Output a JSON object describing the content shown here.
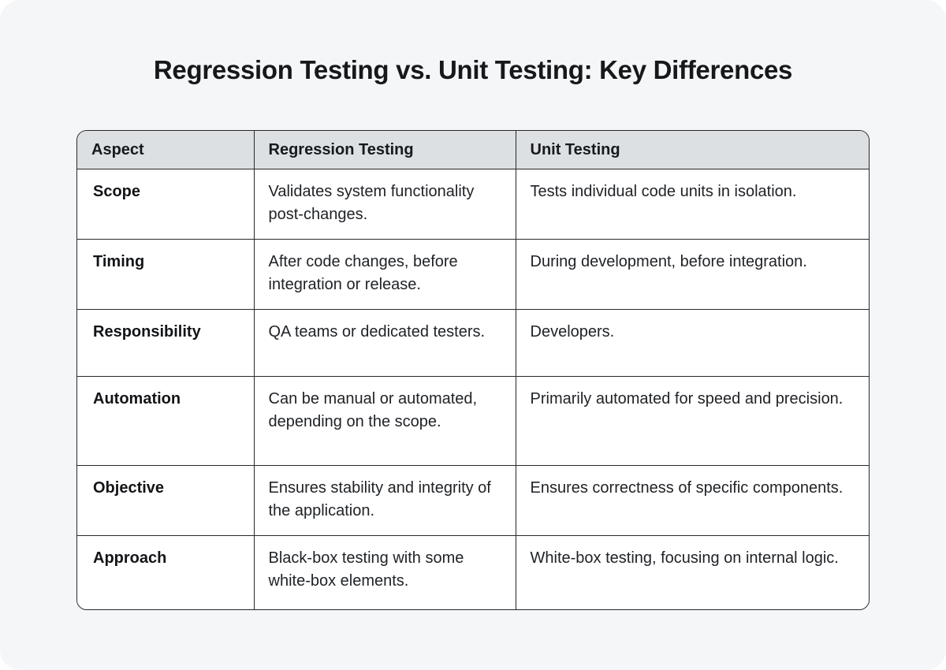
{
  "page": {
    "title": "Regression Testing vs. Unit Testing: Key Differences",
    "colors": {
      "panel_background": "#f4f6f7",
      "outer_background": "#ffffff",
      "table_background": "#ffffff",
      "header_background": "#dce0e2",
      "border": "#26282a",
      "title_text": "#16181b",
      "body_text": "#202327"
    }
  },
  "table": {
    "columns": [
      "Aspect",
      "Regression Testing",
      "Unit Testing"
    ],
    "rows": [
      {
        "aspect": "Scope",
        "regression": "Validates system functionality post-changes.",
        "unit": "Tests individual code units in isolation."
      },
      {
        "aspect": "Timing",
        "regression": "After code changes, before integration or release.",
        "unit": "During development, before integration."
      },
      {
        "aspect": "Responsibility",
        "regression": "QA teams or dedicated testers.",
        "unit": "Developers."
      },
      {
        "aspect": "Automation",
        "regression": "Can be manual or automated, depending on the scope.",
        "unit": "Primarily automated for speed and precision."
      },
      {
        "aspect": "Objective",
        "regression": "Ensures stability and integrity of the application.",
        "unit": "Ensures correctness of specific components."
      },
      {
        "aspect": "Approach",
        "regression": "Black-box testing with some white-box elements.",
        "unit": "White-box testing, focusing on internal logic."
      }
    ]
  }
}
